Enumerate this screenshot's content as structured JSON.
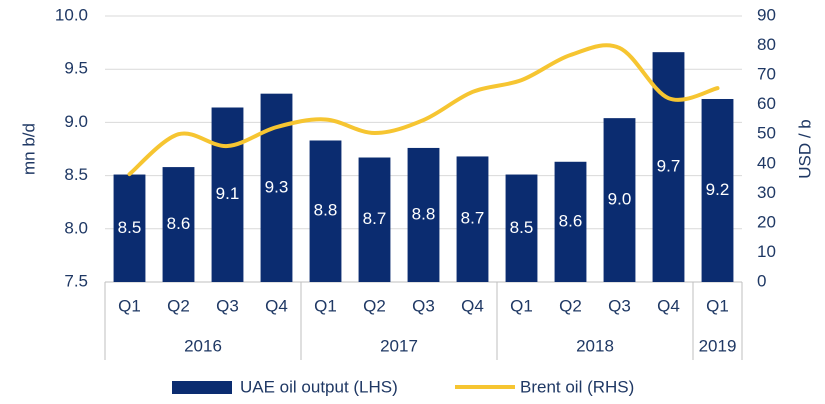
{
  "chart_data": {
    "type": "bar_line",
    "groups": [
      {
        "label": "2016",
        "categories": [
          "Q1",
          "Q2",
          "Q3",
          "Q4"
        ]
      },
      {
        "label": "2017",
        "categories": [
          "Q1",
          "Q2",
          "Q3",
          "Q4"
        ]
      },
      {
        "label": "2018",
        "categories": [
          "Q1",
          "Q2",
          "Q3",
          "Q4"
        ]
      },
      {
        "label": "2019",
        "categories": [
          "Q1"
        ]
      }
    ],
    "series": [
      {
        "name": "UAE oil output (LHS)",
        "type": "bar",
        "color": "#0b2c70",
        "axis": "y",
        "values": [
          8.51,
          8.58,
          9.14,
          9.27,
          8.83,
          8.67,
          8.76,
          8.68,
          8.51,
          8.63,
          9.04,
          9.66,
          9.22
        ],
        "value_labels": [
          "8.5",
          "8.6",
          "9.1",
          "9.3",
          "8.8",
          "8.7",
          "8.8",
          "8.7",
          "8.5",
          "8.6",
          "9.0",
          "9.7",
          "9.2"
        ]
      },
      {
        "name": "Brent oil (RHS)",
        "type": "line",
        "color": "#f6c531",
        "axis": "y2",
        "values": [
          36.5,
          50,
          46,
          52.4,
          55,
          50.4,
          54.8,
          64.3,
          68.3,
          76.8,
          79.2,
          62.2,
          65.6
        ]
      }
    ],
    "ylabel": "mn b/d",
    "y2label": "USD / b",
    "ylim": [
      7.5,
      10.0
    ],
    "yticks": [
      7.5,
      {
        "value": 8,
        "label": "8.0"
      },
      8.5,
      {
        "value": 9,
        "label": "9.0"
      },
      9.5,
      {
        "value": 10,
        "label": "10.0"
      }
    ],
    "y2lim": [
      0,
      90
    ],
    "y2ticks": [
      0,
      10,
      20,
      30,
      40,
      50,
      60,
      70,
      80,
      90
    ],
    "grid": true
  }
}
